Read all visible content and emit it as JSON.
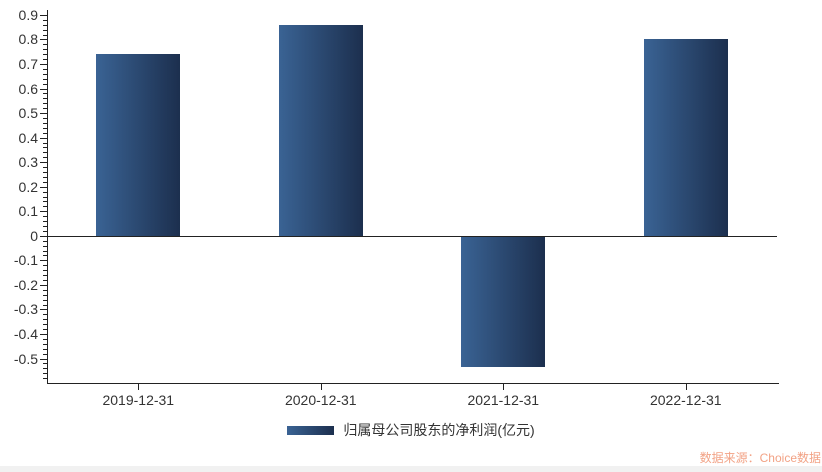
{
  "chart": {
    "type": "bar",
    "title": "",
    "categories": [
      "2019-12-31",
      "2020-12-31",
      "2021-12-31",
      "2022-12-31"
    ],
    "values": [
      0.74,
      0.86,
      -0.53,
      0.8
    ],
    "series_name": "归属母公司股东的净利润(亿元)",
    "legend_label": "归属母公司股东的净利润(亿元)",
    "xlabel": "",
    "ylabel": "",
    "ylim": [
      -0.6,
      0.92
    ],
    "y_major_tick_labels": [
      "0.9",
      "0.8",
      "0.7",
      "0.6",
      "0.5",
      "0.4",
      "0.3",
      "0.2",
      "0.1",
      "0",
      "-0.1",
      "-0.2",
      "-0.3",
      "-0.4",
      "-0.5"
    ],
    "y_minor_tick_step": 0.02,
    "grid": "off",
    "legend_position": "bottom-center",
    "colors": {
      "bar_gradient_left": "#3a6394",
      "bar_gradient_right": "#1c2f4e",
      "axis_line": "#222222",
      "tick_label": "#333333",
      "source_text": "#f2a285",
      "scrollbar_track": "#f1f1f1"
    }
  },
  "source_note": "数据来源：Choice数据"
}
